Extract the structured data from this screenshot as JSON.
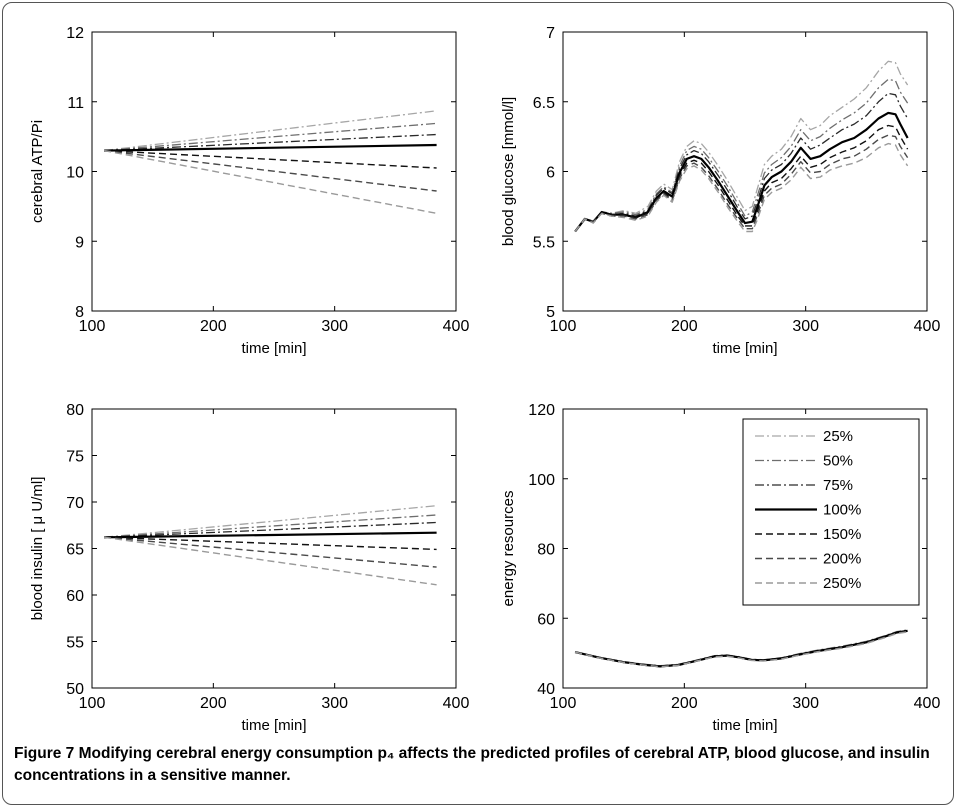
{
  "caption": {
    "label": "Figure 7",
    "text": "Modifying cerebral energy consumption p₄ affects the predicted profiles of cerebral ATP, blood glucose, and insulin concentrations in a sensitive manner."
  },
  "styles": [
    {
      "label": "25%",
      "color": "#a6a6a6",
      "dash": "9 3 2 3",
      "width": 1.3
    },
    {
      "label": "50%",
      "color": "#6e6e6e",
      "dash": "9 3 2 3",
      "width": 1.3
    },
    {
      "label": "75%",
      "color": "#2a2a2a",
      "dash": "9 3 2 3",
      "width": 1.3
    },
    {
      "label": "100%",
      "color": "#000000",
      "dash": "",
      "width": 2.2
    },
    {
      "label": "150%",
      "color": "#111111",
      "dash": "7 4",
      "width": 1.4
    },
    {
      "label": "200%",
      "color": "#4a4a4a",
      "dash": "7 4",
      "width": 1.4
    },
    {
      "label": "250%",
      "color": "#9a9a9a",
      "dash": "7 4",
      "width": 1.4
    }
  ],
  "chart_data": [
    {
      "type": "line",
      "xlabel": "time [min]",
      "ylabel": "cerebral ATP/Pi",
      "xlim": [
        100,
        400
      ],
      "ylim": [
        8,
        12
      ],
      "xticks": [
        100,
        200,
        300,
        400
      ],
      "yticks": [
        8,
        9,
        10,
        11,
        12
      ],
      "x": [
        110,
        384
      ],
      "series": [
        {
          "name": "25%",
          "values": [
            10.3,
            10.87
          ]
        },
        {
          "name": "50%",
          "values": [
            10.3,
            10.69
          ]
        },
        {
          "name": "75%",
          "values": [
            10.3,
            10.53
          ]
        },
        {
          "name": "100%",
          "values": [
            10.3,
            10.38
          ]
        },
        {
          "name": "150%",
          "values": [
            10.3,
            10.05
          ]
        },
        {
          "name": "200%",
          "values": [
            10.3,
            9.72
          ]
        },
        {
          "name": "250%",
          "values": [
            10.3,
            9.4
          ]
        }
      ]
    },
    {
      "type": "line",
      "xlabel": "time [min]",
      "ylabel": "blood glucose [mmol/l]",
      "xlim": [
        100,
        400
      ],
      "ylim": [
        5,
        7
      ],
      "xticks": [
        100,
        200,
        300,
        400
      ],
      "yticks": [
        5,
        5.5,
        6,
        6.5,
        7
      ],
      "x": [
        110,
        118,
        125,
        132,
        140,
        150,
        160,
        170,
        177,
        183,
        190,
        196,
        202,
        208,
        214,
        220,
        228,
        236,
        244,
        250,
        256,
        260,
        266,
        272,
        280,
        288,
        296,
        304,
        312,
        320,
        330,
        340,
        350,
        360,
        368,
        374,
        378,
        384
      ],
      "series": [
        {
          "name": "25%",
          "values": [
            5.57,
            5.66,
            5.64,
            5.71,
            5.7,
            5.72,
            5.7,
            5.75,
            5.86,
            5.91,
            5.87,
            6.07,
            6.18,
            6.22,
            6.2,
            6.14,
            6.04,
            5.93,
            5.81,
            5.72,
            5.75,
            5.87,
            6.05,
            6.11,
            6.16,
            6.25,
            6.38,
            6.3,
            6.33,
            6.4,
            6.46,
            6.52,
            6.6,
            6.72,
            6.79,
            6.78,
            6.7,
            6.62
          ]
        },
        {
          "name": "50%",
          "values": [
            5.57,
            5.66,
            5.64,
            5.71,
            5.7,
            5.71,
            5.69,
            5.73,
            5.84,
            5.89,
            5.85,
            6.04,
            6.15,
            6.18,
            6.16,
            6.1,
            6.0,
            5.89,
            5.77,
            5.68,
            5.71,
            5.82,
            5.99,
            6.05,
            6.1,
            6.18,
            6.3,
            6.22,
            6.25,
            6.31,
            6.37,
            6.42,
            6.49,
            6.6,
            6.66,
            6.65,
            6.57,
            6.49
          ]
        },
        {
          "name": "75%",
          "values": [
            5.57,
            5.66,
            5.64,
            5.71,
            5.69,
            5.7,
            5.68,
            5.72,
            5.83,
            5.88,
            5.84,
            6.02,
            6.12,
            6.15,
            6.13,
            6.07,
            5.97,
            5.86,
            5.74,
            5.66,
            5.68,
            5.78,
            5.95,
            6.01,
            6.05,
            6.13,
            6.24,
            6.16,
            6.19,
            6.24,
            6.3,
            6.34,
            6.4,
            6.5,
            6.56,
            6.55,
            6.47,
            6.38
          ]
        },
        {
          "name": "100%",
          "values": [
            5.57,
            5.66,
            5.64,
            5.71,
            5.69,
            5.69,
            5.67,
            5.71,
            5.81,
            5.86,
            5.82,
            5.99,
            6.09,
            6.11,
            6.09,
            6.03,
            5.93,
            5.82,
            5.71,
            5.63,
            5.64,
            5.74,
            5.9,
            5.96,
            6.0,
            6.07,
            6.17,
            6.09,
            6.11,
            6.16,
            6.21,
            6.24,
            6.3,
            6.38,
            6.42,
            6.41,
            6.34,
            6.24
          ]
        },
        {
          "name": "150%",
          "values": [
            5.57,
            5.66,
            5.64,
            5.7,
            5.69,
            5.69,
            5.67,
            5.7,
            5.8,
            5.85,
            5.8,
            5.97,
            6.06,
            6.08,
            6.06,
            6.0,
            5.9,
            5.79,
            5.68,
            5.61,
            5.61,
            5.71,
            5.86,
            5.92,
            5.95,
            6.02,
            6.11,
            6.03,
            6.05,
            6.1,
            6.14,
            6.17,
            6.22,
            6.3,
            6.33,
            6.32,
            6.25,
            6.16
          ]
        },
        {
          "name": "200%",
          "values": [
            5.57,
            5.66,
            5.64,
            5.7,
            5.68,
            5.68,
            5.66,
            5.69,
            5.79,
            5.84,
            5.79,
            5.95,
            6.04,
            6.06,
            6.03,
            5.97,
            5.87,
            5.76,
            5.66,
            5.59,
            5.59,
            5.68,
            5.83,
            5.88,
            5.91,
            5.98,
            6.07,
            5.99,
            6.0,
            6.05,
            6.09,
            6.11,
            6.16,
            6.23,
            6.26,
            6.25,
            6.18,
            6.1
          ]
        },
        {
          "name": "250%",
          "values": [
            5.57,
            5.66,
            5.63,
            5.7,
            5.68,
            5.67,
            5.65,
            5.68,
            5.78,
            5.83,
            5.78,
            5.93,
            6.02,
            6.04,
            6.01,
            5.95,
            5.85,
            5.74,
            5.64,
            5.57,
            5.57,
            5.65,
            5.8,
            5.85,
            5.88,
            5.94,
            6.03,
            5.95,
            5.96,
            6.01,
            6.04,
            6.06,
            6.1,
            6.17,
            6.2,
            6.19,
            6.12,
            6.04
          ]
        }
      ]
    },
    {
      "type": "line",
      "xlabel": "time [min]",
      "ylabel": "blood insulin [ μ U/ml]",
      "xlim": [
        100,
        400
      ],
      "ylim": [
        50,
        80
      ],
      "xticks": [
        100,
        200,
        300,
        400
      ],
      "yticks": [
        50,
        55,
        60,
        65,
        70,
        75,
        80
      ],
      "x": [
        110,
        384
      ],
      "series": [
        {
          "name": "25%",
          "values": [
            66.2,
            69.6
          ]
        },
        {
          "name": "50%",
          "values": [
            66.2,
            68.6
          ]
        },
        {
          "name": "75%",
          "values": [
            66.2,
            67.8
          ]
        },
        {
          "name": "100%",
          "values": [
            66.2,
            66.7
          ]
        },
        {
          "name": "150%",
          "values": [
            66.2,
            64.9
          ]
        },
        {
          "name": "200%",
          "values": [
            66.2,
            63.0
          ]
        },
        {
          "name": "250%",
          "values": [
            66.2,
            61.1
          ]
        }
      ]
    },
    {
      "type": "line",
      "xlabel": "time [min]",
      "ylabel": "energy resources",
      "xlim": [
        100,
        400
      ],
      "ylim": [
        40,
        120
      ],
      "xticks": [
        100,
        200,
        300,
        400
      ],
      "yticks": [
        40,
        60,
        80,
        100,
        120
      ],
      "legend": "top-right",
      "x": [
        110,
        130,
        150,
        165,
        180,
        195,
        210,
        225,
        235,
        245,
        255,
        265,
        280,
        295,
        310,
        330,
        350,
        365,
        375,
        384
      ],
      "series": [
        {
          "name": "25%",
          "values": [
            50.3,
            48.8,
            47.6,
            46.9,
            46.4,
            46.8,
            48.0,
            49.3,
            49.5,
            49.0,
            48.3,
            48.1,
            48.7,
            49.9,
            50.9,
            52.0,
            53.4,
            55.0,
            56.2,
            56.7
          ]
        },
        {
          "name": "50%",
          "values": [
            50.3,
            48.8,
            47.5,
            46.8,
            46.3,
            46.7,
            47.9,
            49.2,
            49.4,
            48.9,
            48.2,
            48.0,
            48.6,
            49.8,
            50.8,
            51.9,
            53.3,
            54.9,
            56.1,
            56.6
          ]
        },
        {
          "name": "75%",
          "values": [
            50.3,
            48.7,
            47.5,
            46.8,
            46.3,
            46.7,
            47.9,
            49.2,
            49.4,
            48.9,
            48.2,
            48.0,
            48.5,
            49.7,
            50.7,
            51.8,
            53.2,
            54.8,
            56.0,
            56.5
          ]
        },
        {
          "name": "100%",
          "values": [
            50.3,
            48.7,
            47.4,
            46.7,
            46.2,
            46.6,
            47.8,
            49.1,
            49.3,
            48.8,
            48.1,
            47.9,
            48.5,
            49.6,
            50.6,
            51.7,
            53.1,
            54.7,
            55.9,
            56.4
          ]
        },
        {
          "name": "150%",
          "values": [
            50.3,
            48.7,
            47.4,
            46.7,
            46.2,
            46.6,
            47.8,
            49.0,
            49.2,
            48.7,
            48.0,
            47.8,
            48.4,
            49.5,
            50.5,
            51.6,
            53.0,
            54.6,
            55.8,
            56.3
          ]
        },
        {
          "name": "200%",
          "values": [
            50.3,
            48.6,
            47.3,
            46.6,
            46.1,
            46.5,
            47.7,
            49.0,
            49.2,
            48.7,
            48.0,
            47.8,
            48.3,
            49.5,
            50.4,
            51.5,
            52.9,
            54.5,
            55.7,
            56.2
          ]
        },
        {
          "name": "250%",
          "values": [
            50.3,
            48.6,
            47.3,
            46.6,
            46.1,
            46.5,
            47.7,
            48.9,
            49.1,
            48.6,
            47.9,
            47.7,
            48.3,
            49.4,
            50.4,
            51.4,
            52.8,
            54.4,
            55.6,
            56.1
          ]
        }
      ]
    }
  ]
}
